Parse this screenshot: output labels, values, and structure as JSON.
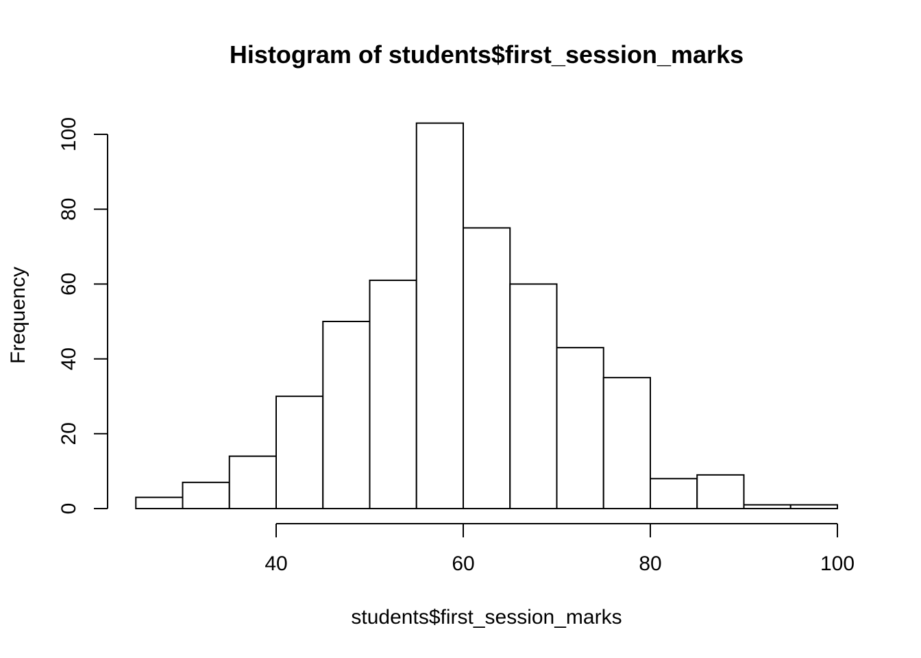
{
  "chart_data": {
    "type": "bar",
    "subtype": "histogram",
    "title": "Histogram of students$first_session_marks",
    "xlabel": "students$first_session_marks",
    "ylabel": "Frequency",
    "bins": [
      {
        "x0": 25,
        "x1": 30,
        "count": 3
      },
      {
        "x0": 30,
        "x1": 35,
        "count": 7
      },
      {
        "x0": 35,
        "x1": 40,
        "count": 14
      },
      {
        "x0": 40,
        "x1": 45,
        "count": 30
      },
      {
        "x0": 45,
        "x1": 50,
        "count": 50
      },
      {
        "x0": 50,
        "x1": 55,
        "count": 61
      },
      {
        "x0": 55,
        "x1": 60,
        "count": 103
      },
      {
        "x0": 60,
        "x1": 65,
        "count": 75
      },
      {
        "x0": 65,
        "x1": 70,
        "count": 60
      },
      {
        "x0": 70,
        "x1": 75,
        "count": 43
      },
      {
        "x0": 75,
        "x1": 80,
        "count": 35
      },
      {
        "x0": 80,
        "x1": 85,
        "count": 8
      },
      {
        "x0": 85,
        "x1": 90,
        "count": 9
      },
      {
        "x0": 90,
        "x1": 95,
        "count": 1
      },
      {
        "x0": 95,
        "x1": 100,
        "count": 1
      }
    ],
    "xlim": [
      25,
      100
    ],
    "ylim": [
      0,
      103
    ],
    "x_ticks": [
      40,
      60,
      80,
      100
    ],
    "y_ticks": [
      0,
      20,
      40,
      60,
      80,
      100
    ],
    "grid": false,
    "legend": "none",
    "bar_fill": "#ffffff",
    "bar_stroke": "#000000"
  }
}
